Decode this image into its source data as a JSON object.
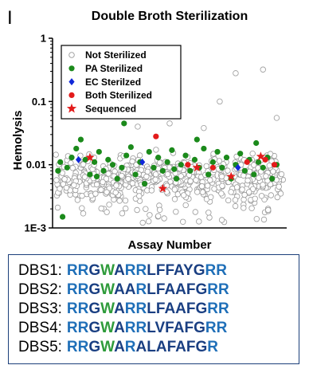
{
  "panel_letter": "I",
  "colors": {
    "not_sterilized_stroke": "#9a9a9a",
    "pa": "#1b8a1b",
    "ec": "#1028d8",
    "both": "#e31b1b",
    "sequenced": "#e31b1b",
    "res_blue": "#1f6fb8",
    "res_green": "#2e9b3a",
    "res_dark": "#1a3f82",
    "box_border": "#1c3f7a"
  },
  "chart_data": {
    "type": "scatter",
    "title": "Double Broth Sterilization",
    "xlabel": "Assay Number",
    "ylabel": "Hemolysis",
    "y_scale": "log",
    "ylim": [
      0.001,
      1
    ],
    "y_ticks": [
      {
        "value": 1,
        "label": "1"
      },
      {
        "value": 0.1,
        "label": "0.1"
      },
      {
        "value": 0.01,
        "label": "0.01"
      },
      {
        "value": 0.001,
        "label": "1E-3"
      }
    ],
    "legend": {
      "position": "top-left",
      "entries": [
        {
          "key": "not_sterilized",
          "label": "Not Sterilized"
        },
        {
          "key": "pa",
          "label": "PA Sterilized"
        },
        {
          "key": "ec",
          "label": "EC Sterilzed"
        },
        {
          "key": "both",
          "label": "Both Sterilized"
        },
        {
          "key": "sequenced",
          "label": "Sequenced"
        }
      ]
    },
    "series": [
      {
        "name": "PA Sterilized",
        "key": "pa",
        "points": [
          {
            "x": 0.01,
            "y": 0.008
          },
          {
            "x": 0.02,
            "y": 0.011
          },
          {
            "x": 0.03,
            "y": 0.0015
          },
          {
            "x": 0.05,
            "y": 0.009
          },
          {
            "x": 0.07,
            "y": 0.013
          },
          {
            "x": 0.09,
            "y": 0.018
          },
          {
            "x": 0.11,
            "y": 0.025
          },
          {
            "x": 0.13,
            "y": 0.012
          },
          {
            "x": 0.15,
            "y": 0.007
          },
          {
            "x": 0.17,
            "y": 0.011
          },
          {
            "x": 0.19,
            "y": 0.016
          },
          {
            "x": 0.21,
            "y": 0.008
          },
          {
            "x": 0.23,
            "y": 0.012
          },
          {
            "x": 0.25,
            "y": 0.01
          },
          {
            "x": 0.27,
            "y": 0.006
          },
          {
            "x": 0.29,
            "y": 0.009
          },
          {
            "x": 0.31,
            "y": 0.014
          },
          {
            "x": 0.33,
            "y": 0.019
          },
          {
            "x": 0.35,
            "y": 0.007
          },
          {
            "x": 0.37,
            "y": 0.011
          },
          {
            "x": 0.39,
            "y": 0.005
          },
          {
            "x": 0.41,
            "y": 0.016
          },
          {
            "x": 0.43,
            "y": 0.009
          },
          {
            "x": 0.45,
            "y": 0.013
          },
          {
            "x": 0.47,
            "y": 0.008
          },
          {
            "x": 0.49,
            "y": 0.011
          },
          {
            "x": 0.51,
            "y": 0.017
          },
          {
            "x": 0.53,
            "y": 0.006
          },
          {
            "x": 0.55,
            "y": 0.01
          },
          {
            "x": 0.57,
            "y": 0.014
          },
          {
            "x": 0.59,
            "y": 0.008
          },
          {
            "x": 0.61,
            "y": 0.012
          },
          {
            "x": 0.63,
            "y": 0.009
          },
          {
            "x": 0.65,
            "y": 0.018
          },
          {
            "x": 0.67,
            "y": 0.007
          },
          {
            "x": 0.69,
            "y": 0.011
          },
          {
            "x": 0.71,
            "y": 0.016
          },
          {
            "x": 0.73,
            "y": 0.009
          },
          {
            "x": 0.75,
            "y": 0.013
          },
          {
            "x": 0.77,
            "y": 0.006
          },
          {
            "x": 0.79,
            "y": 0.01
          },
          {
            "x": 0.81,
            "y": 0.015
          },
          {
            "x": 0.83,
            "y": 0.008
          },
          {
            "x": 0.85,
            "y": 0.012
          },
          {
            "x": 0.87,
            "y": 0.007
          },
          {
            "x": 0.89,
            "y": 0.011
          },
          {
            "x": 0.91,
            "y": 0.009
          },
          {
            "x": 0.93,
            "y": 0.013
          },
          {
            "x": 0.95,
            "y": 0.006
          },
          {
            "x": 0.97,
            "y": 0.01
          },
          {
            "x": 0.3,
            "y": 0.045
          },
          {
            "x": 0.62,
            "y": 0.025
          },
          {
            "x": 0.88,
            "y": 0.022
          },
          {
            "x": 0.18,
            "y": 0.0065
          },
          {
            "x": 0.52,
            "y": 0.0085
          }
        ]
      },
      {
        "name": "EC Sterilzed",
        "key": "ec",
        "points": [
          {
            "x": 0.1,
            "y": 0.012
          },
          {
            "x": 0.38,
            "y": 0.011
          },
          {
            "x": 0.8,
            "y": 0.009
          }
        ]
      },
      {
        "name": "Both Sterilized",
        "key": "both",
        "points": [
          {
            "x": 0.44,
            "y": 0.028
          },
          {
            "x": 0.58,
            "y": 0.01
          },
          {
            "x": 0.69,
            "y": 0.009
          },
          {
            "x": 0.84,
            "y": 0.011
          },
          {
            "x": 0.92,
            "y": 0.012
          },
          {
            "x": 0.96,
            "y": 0.01
          }
        ]
      },
      {
        "name": "Sequenced",
        "key": "sequenced",
        "points": [
          {
            "x": 0.15,
            "y": 0.013
          },
          {
            "x": 0.47,
            "y": 0.0042
          },
          {
            "x": 0.62,
            "y": 0.009
          },
          {
            "x": 0.77,
            "y": 0.0065
          },
          {
            "x": 0.9,
            "y": 0.0135
          }
        ]
      }
    ],
    "not_sterilized": {
      "count": 620,
      "typical_range": [
        0.002,
        0.02
      ],
      "outliers": [
        {
          "x": 0.79,
          "y": 0.28
        },
        {
          "x": 0.91,
          "y": 0.32
        },
        {
          "x": 0.72,
          "y": 0.1
        },
        {
          "x": 0.97,
          "y": 0.055
        },
        {
          "x": 0.5,
          "y": 0.045
        },
        {
          "x": 0.36,
          "y": 0.04
        },
        {
          "x": 0.65,
          "y": 0.038
        }
      ]
    }
  },
  "sequences": [
    {
      "label": "DBS1:",
      "residues": "RRGWARRLFFAYGRR"
    },
    {
      "label": "DBS2:",
      "residues": "RRGWAARLFAAFGRR"
    },
    {
      "label": "DBS3:",
      "residues": "RRGWARRLFAAFGRR"
    },
    {
      "label": "DBS4:",
      "residues": "RRGWARRLVFAFGRR"
    },
    {
      "label": "DBS5:",
      "residues": "RRGWARALAFAFGR"
    }
  ]
}
